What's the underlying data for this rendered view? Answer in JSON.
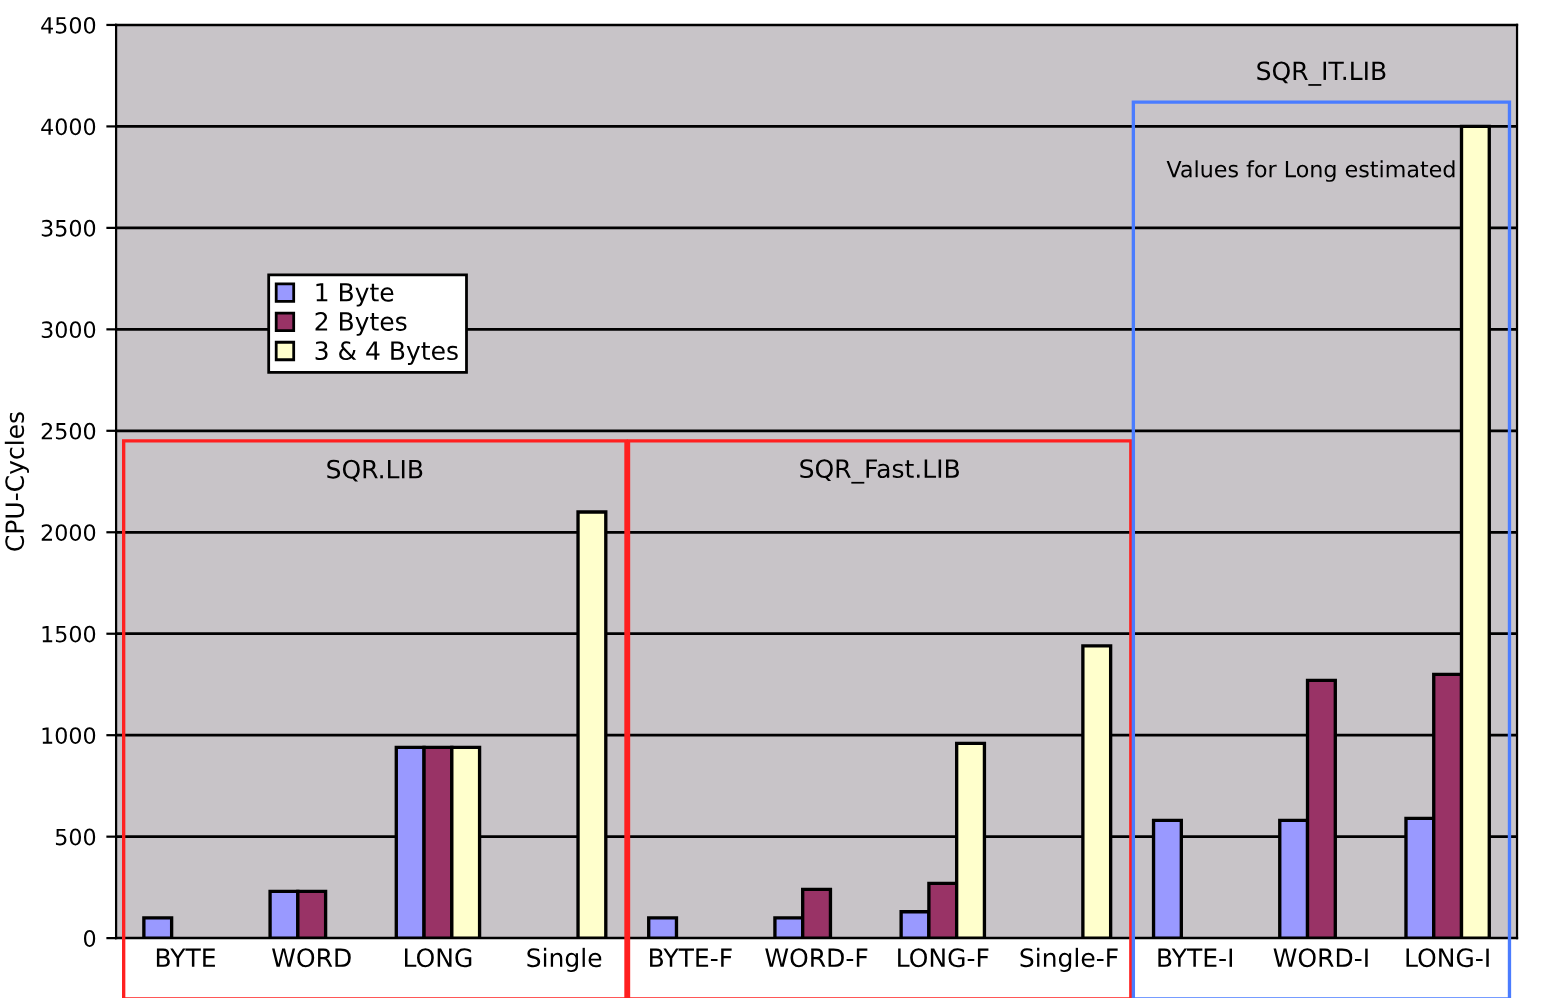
{
  "chart_data": {
    "type": "bar",
    "ylabel": "CPU-Cycles",
    "categories": [
      "BYTE",
      "WORD",
      "LONG",
      "Single",
      "BYTE-F",
      "WORD-F",
      "LONG-F",
      "Single-F",
      "BYTE-I",
      "WORD-I",
      "LONG-I"
    ],
    "series": [
      {
        "name": "1 Byte",
        "color": "#9999ff",
        "values": [
          100,
          230,
          940,
          null,
          100,
          100,
          130,
          null,
          580,
          580,
          590
        ]
      },
      {
        "name": "2 Bytes",
        "color": "#993366",
        "values": [
          null,
          230,
          940,
          null,
          null,
          240,
          270,
          null,
          null,
          1270,
          1300
        ]
      },
      {
        "name": "3 & 4 Bytes",
        "color": "#ffffcc",
        "values": [
          null,
          null,
          940,
          2100,
          null,
          null,
          960,
          1440,
          null,
          null,
          4000
        ]
      }
    ],
    "ylim": [
      0,
      4500
    ],
    "yticks": [
      0,
      500,
      1000,
      1500,
      2000,
      2500,
      3000,
      3500,
      4000,
      4500
    ],
    "grid": "y",
    "legend": "top left",
    "annotations": [
      "SQR.LIB",
      "SQR_Fast.LIB",
      "SQR_IT.LIB",
      "Values for Long estimated"
    ]
  }
}
